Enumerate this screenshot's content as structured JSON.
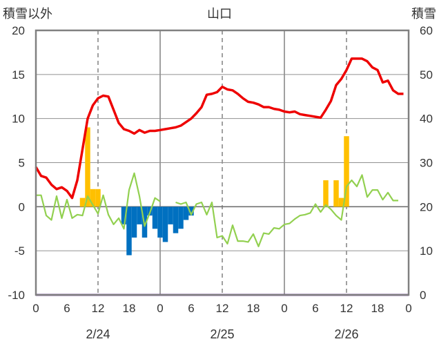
{
  "chart_data": {
    "type": "line",
    "title": "山口",
    "left_axis_label": "積雪以外",
    "right_axis_label": "積雪",
    "left_ylim": [
      -10,
      20
    ],
    "left_ticks": [
      "20",
      "15",
      "10",
      "5",
      "0",
      "-5",
      "-10"
    ],
    "right_ylim": [
      0,
      60
    ],
    "right_ticks": [
      "60",
      "50",
      "40",
      "30",
      "20",
      "10",
      "0"
    ],
    "x_range_hours": [
      0,
      72
    ],
    "x_tick_labels": [
      "0",
      "6",
      "12",
      "18",
      "0",
      "6",
      "12",
      "18",
      "0",
      "6",
      "12",
      "18",
      "0"
    ],
    "date_labels": [
      {
        "hour": 12,
        "label": "2/24"
      },
      {
        "hour": 36,
        "label": "2/25"
      },
      {
        "hour": 60,
        "label": "2/26"
      }
    ],
    "grid": "dashed vertical lines every 12 hours",
    "colors": {
      "red_line": "#ee0000",
      "green_line": "#92d050",
      "orange_bars": "#ffc000",
      "blue_bars": "#0070c0",
      "bottom_line": "#7030a0",
      "frame": "#808080",
      "grid": "#606060"
    },
    "series": [
      {
        "color": "red_line",
        "axis": "left",
        "kind": "line",
        "x": [
          0,
          1,
          2,
          3,
          4,
          5,
          6,
          7,
          8,
          9,
          10,
          11,
          12,
          13,
          14,
          15,
          16,
          17,
          18,
          19,
          20,
          21,
          22,
          23,
          24,
          25,
          26,
          27,
          28,
          29,
          30,
          31,
          32,
          33,
          34,
          35,
          36,
          37,
          38,
          39,
          40,
          41,
          42,
          43,
          44,
          45,
          46,
          47,
          48,
          49,
          50,
          51,
          52,
          53,
          54,
          55,
          56,
          57,
          58,
          59,
          60,
          61,
          62,
          63,
          64,
          65,
          66,
          67,
          68,
          69,
          70,
          71
        ],
        "values": [
          4.5,
          3.5,
          3.3,
          2.5,
          2.0,
          2.2,
          1.8,
          1.0,
          3.0,
          6.5,
          10.0,
          11.5,
          12.3,
          12.6,
          12.5,
          11.0,
          9.5,
          8.8,
          8.6,
          8.3,
          8.7,
          8.4,
          8.6,
          8.6,
          8.7,
          8.8,
          8.9,
          9.0,
          9.2,
          9.6,
          10.0,
          10.6,
          11.3,
          12.7,
          12.8,
          13.0,
          13.6,
          13.3,
          13.2,
          12.8,
          12.3,
          11.9,
          11.8,
          11.6,
          11.3,
          11.3,
          11.1,
          11.0,
          10.8,
          10.7,
          10.8,
          10.5,
          10.4,
          10.3,
          10.2,
          10.1,
          11.0,
          12.0,
          13.8,
          14.5,
          15.5,
          16.8,
          16.8,
          16.8,
          16.5,
          15.8,
          15.5,
          14.1,
          14.3,
          13.2,
          12.8,
          12.8
        ]
      },
      {
        "color": "green_line",
        "axis": "left",
        "kind": "line",
        "x": [
          0,
          1,
          2,
          3,
          4,
          5,
          6,
          7,
          8,
          9,
          10,
          11,
          12,
          13,
          14,
          15,
          16,
          17,
          18,
          19,
          20,
          21,
          22,
          23,
          24,
          25,
          26,
          27,
          28,
          29,
          30,
          31,
          32,
          33,
          34,
          35,
          36,
          37,
          38,
          39,
          40,
          41,
          42,
          43,
          44,
          45,
          46,
          47,
          48,
          49,
          50,
          51,
          52,
          53,
          54,
          55,
          56,
          57,
          58,
          59,
          60,
          61,
          62,
          63,
          64,
          65,
          66,
          67,
          68,
          69,
          70,
          71
        ],
        "values": [
          1.3,
          1.3,
          -1.0,
          -1.5,
          1.2,
          -1.3,
          0.8,
          -1.3,
          -0.9,
          -1.0,
          1.2,
          0.2,
          -0.8,
          1.3,
          -0.9,
          -2.0,
          -1.3,
          -2.5,
          1.9,
          3.8,
          1.2,
          -2.2,
          -0.7,
          1.0,
          0.6,
          null,
          null,
          0.5,
          0.3,
          0.5,
          -0.9,
          0.3,
          0.5,
          -0.9,
          0.5,
          -3.5,
          -3.3,
          -4.2,
          -2.1,
          -3.9,
          -3.9,
          -4.0,
          -3.1,
          -4.5,
          -3.0,
          -3.1,
          -2.4,
          -2.5,
          -2.0,
          -1.9,
          -1.4,
          -1.0,
          -0.9,
          -0.7,
          0.3,
          -0.6,
          0.2,
          -0.3,
          -1.0,
          -1.5,
          2.3,
          3.0,
          2.3,
          3.6,
          1.1,
          1.9,
          1.9,
          0.8,
          1.6,
          0.7,
          0.7,
          null
        ]
      },
      {
        "color": "orange_bars",
        "axis": "left",
        "kind": "bar",
        "x": [
          9,
          10,
          11,
          12,
          13,
          14,
          48,
          49,
          50,
          51,
          52,
          53,
          56,
          57,
          58,
          59,
          60,
          61,
          62
        ],
        "values": [
          1.0,
          9.0,
          2.0,
          2.0,
          0,
          0,
          0,
          0,
          0,
          0,
          0,
          0,
          3.0,
          0,
          3.0,
          1.0,
          8.0,
          0,
          0
        ]
      },
      {
        "color": "blue_bars",
        "axis": "left",
        "kind": "bar",
        "x": [
          17,
          18,
          19,
          20,
          21,
          22,
          23,
          24,
          25,
          26,
          27,
          28,
          29,
          30
        ],
        "values": [
          -2.0,
          -5.5,
          -3.5,
          -2.0,
          -3.5,
          -1.0,
          -2.5,
          -3.5,
          -4.0,
          -2.0,
          -3.0,
          -2.5,
          -1.5,
          -1.0
        ]
      },
      {
        "color": "bottom_line",
        "axis": "left",
        "kind": "line",
        "x": [
          0,
          72
        ],
        "values": [
          -10,
          -10
        ]
      }
    ]
  }
}
